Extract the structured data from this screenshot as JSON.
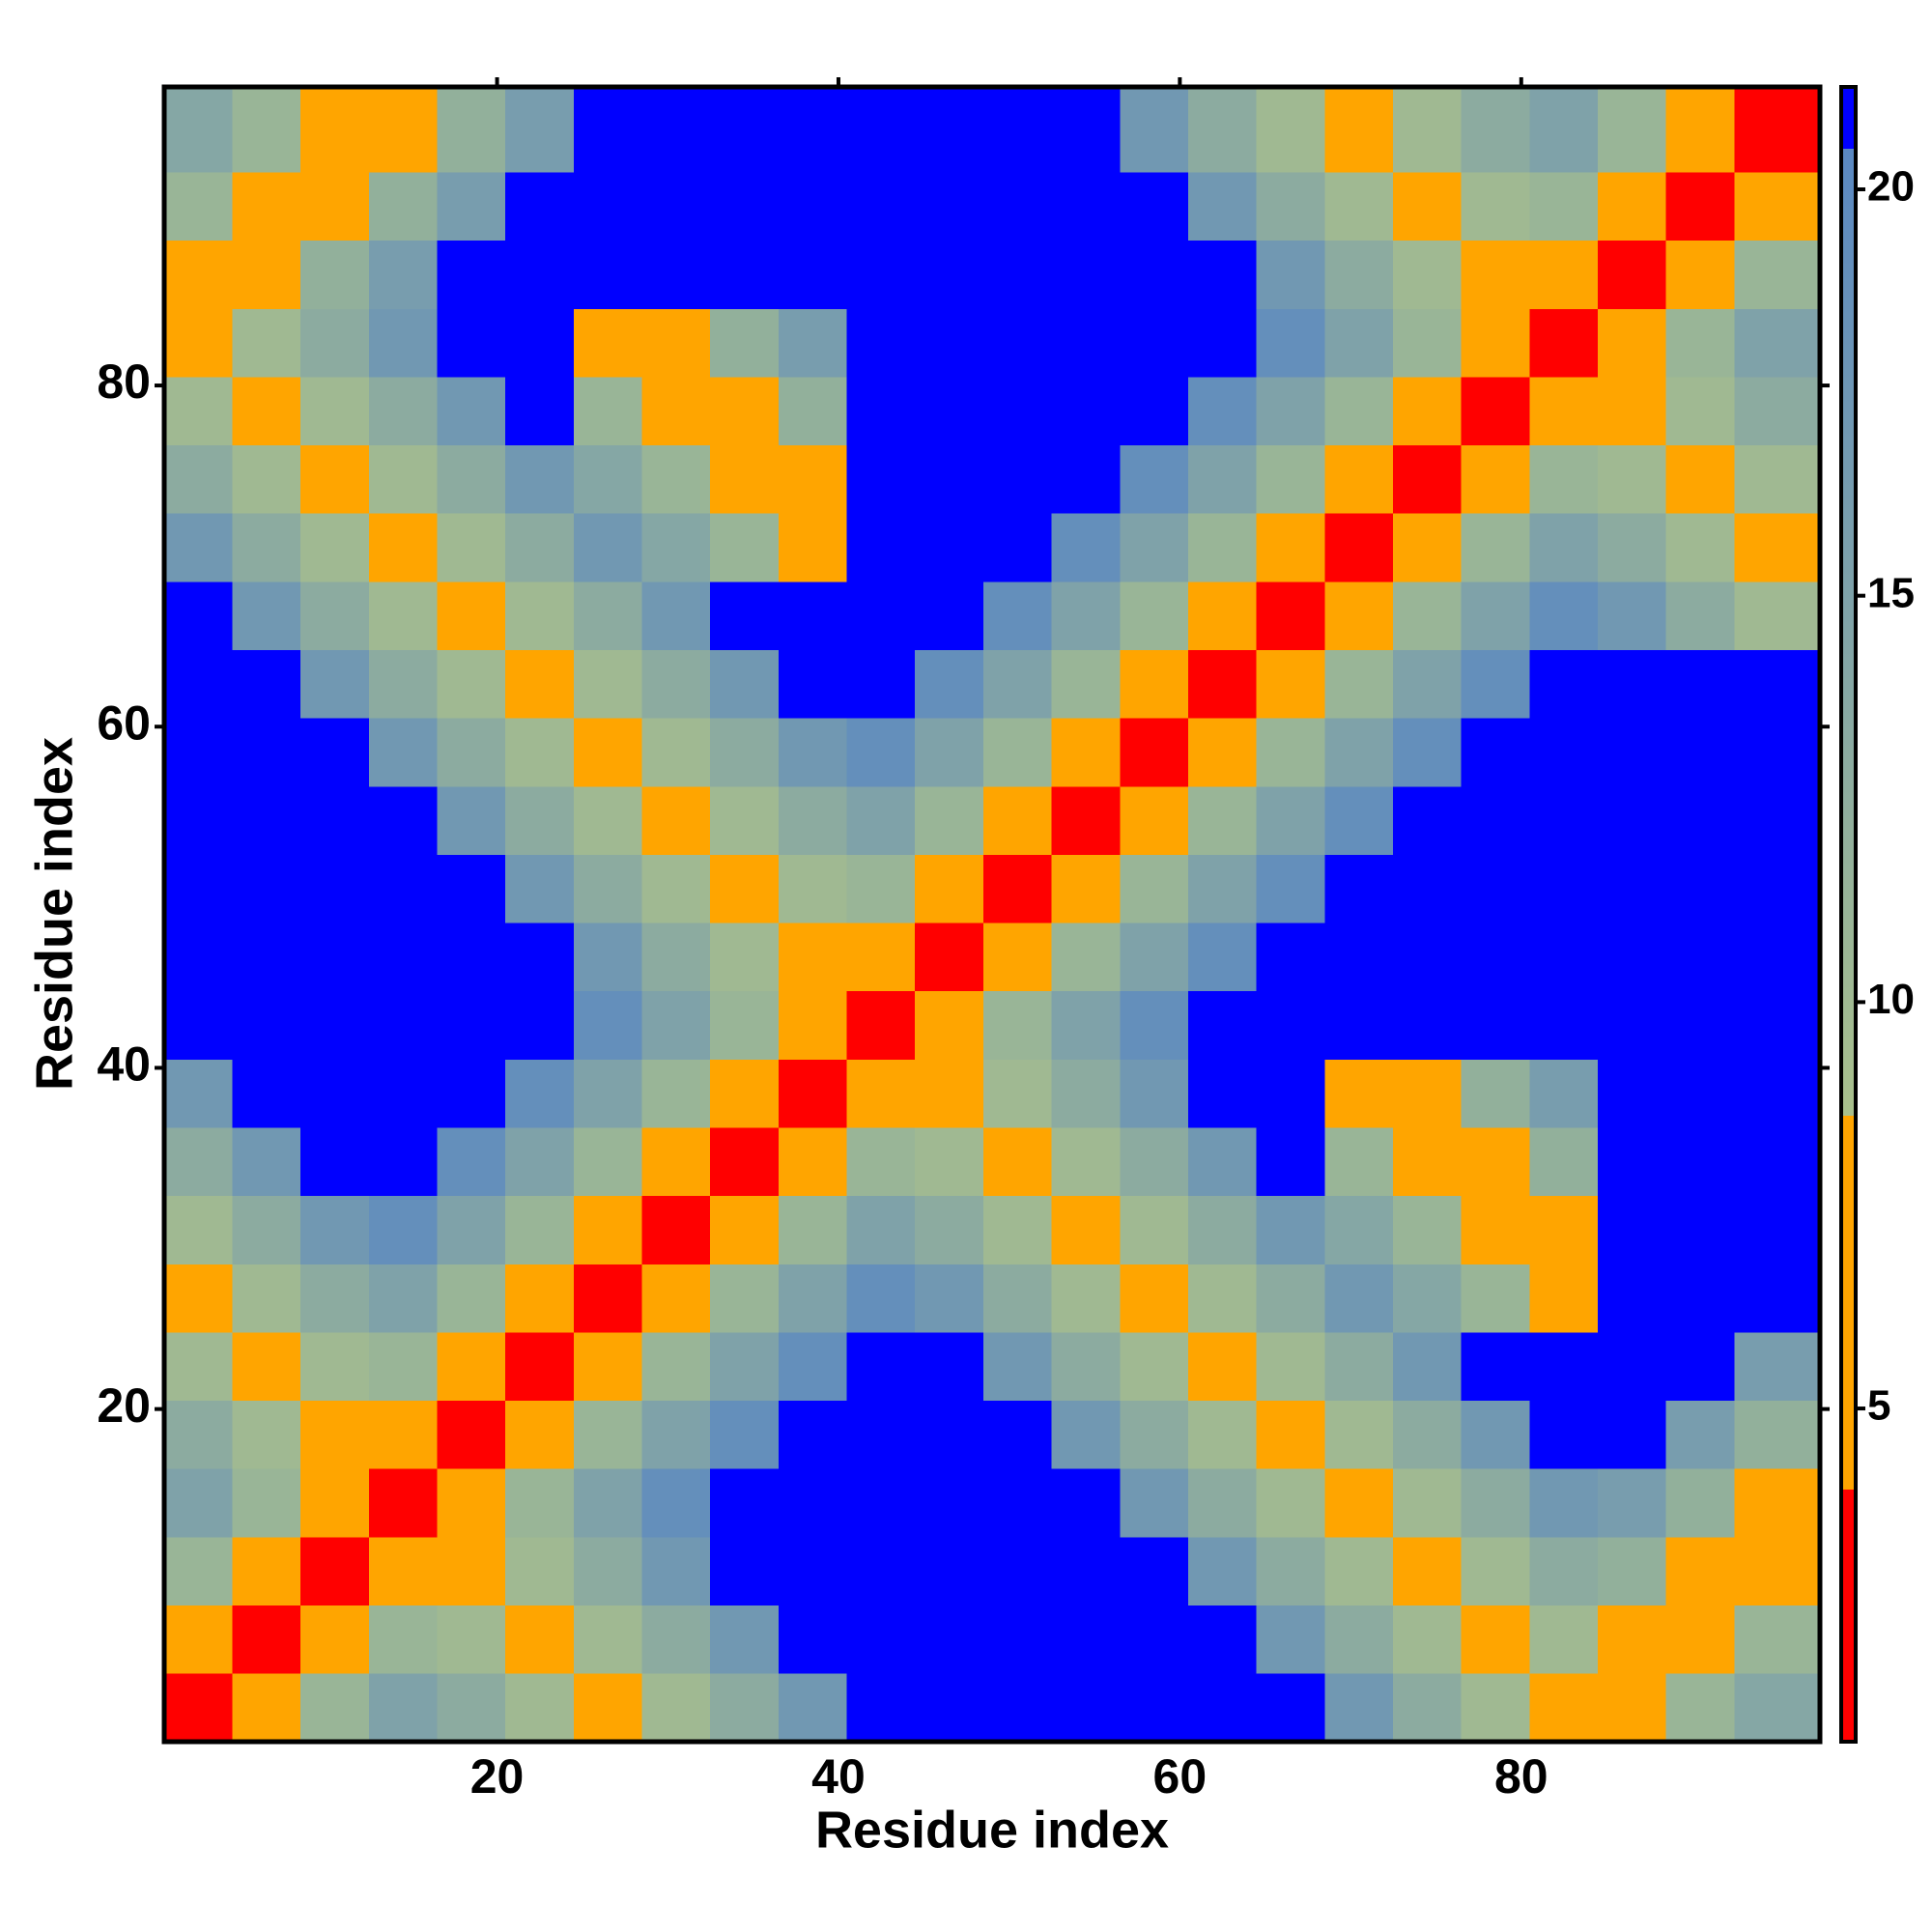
{
  "chart_data": {
    "type": "heatmap",
    "xlabel": "Residue index",
    "ylabel": "Residue index",
    "xlim": [
      0.5,
      97.5
    ],
    "ylim": [
      0.5,
      97.5
    ],
    "xticks": [
      20,
      40,
      60,
      80
    ],
    "yticks": [
      20,
      40,
      60,
      80
    ],
    "xbins": [
      0.5,
      4.5,
      8.5,
      12.5,
      16.5,
      20.5,
      24.5,
      28.5,
      32.5,
      36.5,
      40.5,
      44.5,
      48.5,
      52.5,
      56.5,
      60.5,
      64.5,
      68.5,
      72.5,
      76.5,
      80.5,
      84.5,
      88.5,
      92.5,
      97.5
    ],
    "ybins": [
      0.5,
      4.5,
      8.5,
      12.5,
      16.5,
      20.5,
      24.5,
      28.5,
      32.5,
      36.5,
      40.5,
      44.5,
      48.5,
      52.5,
      56.5,
      60.5,
      64.5,
      68.5,
      72.5,
      76.5,
      80.5,
      84.5,
      88.5,
      92.5,
      97.5
    ],
    "clim": [
      0.9,
      21.26
    ],
    "cticks": [
      5,
      10,
      15,
      20
    ],
    "colorscale": [
      [
        0.9,
        "#ff0000"
      ],
      [
        4,
        "#ff0000"
      ],
      [
        4,
        "#ffa500"
      ],
      [
        8.6,
        "#ffa500"
      ],
      [
        8.6,
        "#a9c08c"
      ],
      [
        20.5,
        "#5a88c2"
      ],
      [
        20.5,
        "#0000ff"
      ],
      [
        21.26,
        "#0000ff"
      ]
    ],
    "values": [
      [
        2.5,
        6,
        11,
        15,
        13,
        10,
        6,
        10,
        13,
        17,
        21,
        21,
        21,
        21,
        21,
        21,
        21,
        17,
        13,
        10,
        6,
        7,
        11,
        14
      ],
      [
        6,
        2.5,
        6,
        11,
        10,
        6,
        10,
        13,
        17,
        21,
        21,
        21,
        21,
        21,
        21,
        21,
        17,
        13,
        10,
        6,
        10,
        8,
        7,
        11
      ],
      [
        11,
        6,
        2.5,
        6,
        6,
        10,
        13,
        17,
        21,
        21,
        21,
        21,
        21,
        21,
        21,
        17,
        13,
        10,
        6,
        10,
        13,
        12,
        8,
        7
      ],
      [
        15,
        11,
        6,
        2.5,
        6,
        11,
        15,
        19,
        21,
        21,
        21,
        21,
        21,
        21,
        17,
        13,
        10,
        6,
        10,
        13,
        17,
        16,
        12,
        8
      ],
      [
        13,
        10,
        6,
        6,
        2.5,
        6,
        11,
        15,
        19,
        21,
        21,
        21,
        21,
        17,
        13,
        10,
        6,
        10,
        13,
        17,
        21,
        21,
        16,
        12
      ],
      [
        10,
        6,
        10,
        11,
        6,
        2.5,
        6,
        11,
        15,
        19,
        21,
        21,
        17,
        13,
        10,
        6,
        10,
        13,
        17,
        21,
        21,
        21,
        21,
        16
      ],
      [
        6,
        10,
        13,
        15,
        11,
        6,
        2.5,
        6,
        11,
        15,
        19,
        17,
        13,
        10,
        6,
        10,
        13,
        17,
        14,
        11,
        7,
        21,
        21,
        21
      ],
      [
        10,
        13,
        17,
        19,
        15,
        11,
        6,
        2.5,
        6,
        11,
        15,
        13,
        10,
        6,
        10,
        13,
        17,
        14,
        11,
        7,
        8,
        21,
        21,
        21
      ],
      [
        13,
        17,
        21,
        21,
        19,
        15,
        11,
        6,
        2.5,
        6,
        11,
        10,
        6,
        10,
        13,
        17,
        21,
        11,
        7,
        8,
        12,
        21,
        21,
        21
      ],
      [
        17,
        21,
        21,
        21,
        21,
        19,
        15,
        11,
        6,
        2.5,
        6,
        6,
        10,
        13,
        17,
        21,
        21,
        7,
        8,
        12,
        16,
        21,
        21,
        21
      ],
      [
        21,
        21,
        21,
        21,
        21,
        21,
        19,
        15,
        11,
        6,
        2.5,
        6,
        11,
        15,
        19,
        21,
        21,
        21,
        21,
        21,
        21,
        21,
        21,
        21
      ],
      [
        21,
        21,
        21,
        21,
        21,
        21,
        17,
        13,
        10,
        6,
        6,
        2.5,
        6,
        11,
        15,
        19,
        21,
        21,
        21,
        21,
        21,
        21,
        21,
        21
      ],
      [
        21,
        21,
        21,
        21,
        21,
        17,
        13,
        10,
        6,
        10,
        11,
        6,
        2.5,
        6,
        11,
        15,
        19,
        21,
        21,
        21,
        21,
        21,
        21,
        21
      ],
      [
        21,
        21,
        21,
        21,
        17,
        13,
        10,
        6,
        10,
        13,
        15,
        11,
        6,
        2.5,
        6,
        11,
        15,
        19,
        21,
        21,
        21,
        21,
        21,
        21
      ],
      [
        21,
        21,
        21,
        17,
        13,
        10,
        6,
        10,
        13,
        17,
        19,
        15,
        11,
        6,
        2.5,
        6,
        11,
        15,
        19,
        21,
        21,
        21,
        21,
        21
      ],
      [
        21,
        21,
        17,
        13,
        10,
        6,
        10,
        13,
        17,
        21,
        21,
        19,
        15,
        11,
        6,
        2.5,
        6,
        11,
        15,
        19,
        21,
        21,
        21,
        21
      ],
      [
        21,
        17,
        13,
        10,
        6,
        10,
        13,
        17,
        21,
        21,
        21,
        21,
        19,
        15,
        11,
        6,
        2.5,
        6,
        11,
        15,
        19,
        17,
        13,
        10
      ],
      [
        17,
        13,
        10,
        6,
        10,
        13,
        17,
        14,
        11,
        7,
        21,
        21,
        21,
        19,
        15,
        11,
        6,
        2.5,
        6,
        11,
        15,
        13,
        10,
        6
      ],
      [
        13,
        10,
        6,
        10,
        13,
        17,
        14,
        11,
        7,
        8,
        21,
        21,
        21,
        21,
        19,
        15,
        11,
        6,
        2.5,
        6,
        11,
        10,
        6,
        10
      ],
      [
        10,
        6,
        10,
        13,
        17,
        21,
        11,
        7,
        8,
        12,
        21,
        21,
        21,
        21,
        21,
        19,
        15,
        11,
        6,
        2.5,
        6,
        6,
        10,
        13
      ],
      [
        6,
        10,
        13,
        17,
        21,
        21,
        7,
        8,
        12,
        16,
        21,
        21,
        21,
        21,
        21,
        21,
        19,
        15,
        11,
        6,
        2.5,
        6,
        11,
        15
      ],
      [
        7,
        8,
        12,
        16,
        21,
        21,
        21,
        21,
        21,
        21,
        21,
        21,
        21,
        21,
        21,
        21,
        17,
        13,
        10,
        6,
        6,
        2.5,
        6,
        11
      ],
      [
        11,
        7,
        8,
        12,
        16,
        21,
        21,
        21,
        21,
        21,
        21,
        21,
        21,
        21,
        21,
        17,
        13,
        10,
        6,
        10,
        11,
        6,
        2.5,
        6
      ],
      [
        14,
        11,
        7,
        8,
        12,
        16,
        21,
        21,
        21,
        21,
        21,
        21,
        21,
        21,
        17,
        13,
        10,
        6,
        10,
        13,
        15,
        11,
        6,
        2.5
      ]
    ]
  }
}
